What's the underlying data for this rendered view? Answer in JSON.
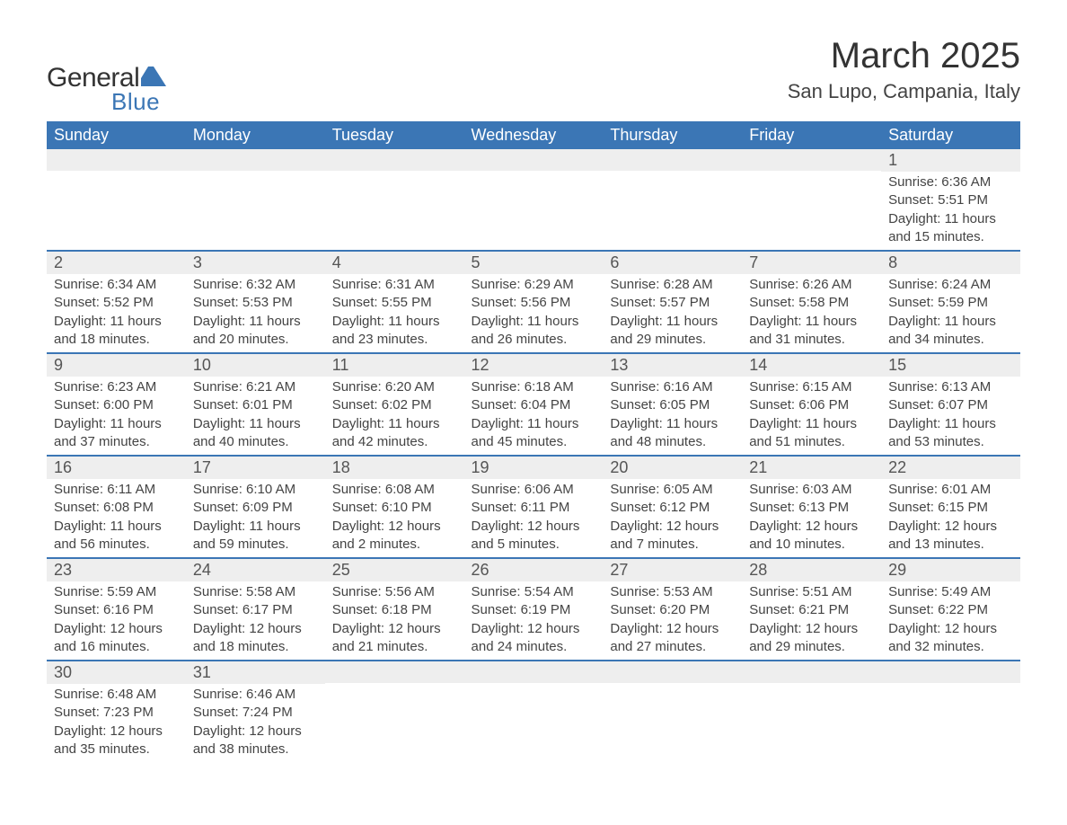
{
  "logo": {
    "text_general": "General",
    "text_blue": "Blue",
    "shape_color": "#3b76b5"
  },
  "header": {
    "month_title": "March 2025",
    "location": "San Lupo, Campania, Italy"
  },
  "colors": {
    "header_bg": "#3b76b5",
    "header_text": "#ffffff",
    "daynum_bg": "#eeeeee",
    "row_border": "#3b76b5",
    "body_text": "#444444",
    "page_bg": "#ffffff"
  },
  "weekdays": [
    "Sunday",
    "Monday",
    "Tuesday",
    "Wednesday",
    "Thursday",
    "Friday",
    "Saturday"
  ],
  "weeks": [
    [
      null,
      null,
      null,
      null,
      null,
      null,
      {
        "day": "1",
        "sunrise": "Sunrise: 6:36 AM",
        "sunset": "Sunset: 5:51 PM",
        "daylight1": "Daylight: 11 hours",
        "daylight2": "and 15 minutes."
      }
    ],
    [
      {
        "day": "2",
        "sunrise": "Sunrise: 6:34 AM",
        "sunset": "Sunset: 5:52 PM",
        "daylight1": "Daylight: 11 hours",
        "daylight2": "and 18 minutes."
      },
      {
        "day": "3",
        "sunrise": "Sunrise: 6:32 AM",
        "sunset": "Sunset: 5:53 PM",
        "daylight1": "Daylight: 11 hours",
        "daylight2": "and 20 minutes."
      },
      {
        "day": "4",
        "sunrise": "Sunrise: 6:31 AM",
        "sunset": "Sunset: 5:55 PM",
        "daylight1": "Daylight: 11 hours",
        "daylight2": "and 23 minutes."
      },
      {
        "day": "5",
        "sunrise": "Sunrise: 6:29 AM",
        "sunset": "Sunset: 5:56 PM",
        "daylight1": "Daylight: 11 hours",
        "daylight2": "and 26 minutes."
      },
      {
        "day": "6",
        "sunrise": "Sunrise: 6:28 AM",
        "sunset": "Sunset: 5:57 PM",
        "daylight1": "Daylight: 11 hours",
        "daylight2": "and 29 minutes."
      },
      {
        "day": "7",
        "sunrise": "Sunrise: 6:26 AM",
        "sunset": "Sunset: 5:58 PM",
        "daylight1": "Daylight: 11 hours",
        "daylight2": "and 31 minutes."
      },
      {
        "day": "8",
        "sunrise": "Sunrise: 6:24 AM",
        "sunset": "Sunset: 5:59 PM",
        "daylight1": "Daylight: 11 hours",
        "daylight2": "and 34 minutes."
      }
    ],
    [
      {
        "day": "9",
        "sunrise": "Sunrise: 6:23 AM",
        "sunset": "Sunset: 6:00 PM",
        "daylight1": "Daylight: 11 hours",
        "daylight2": "and 37 minutes."
      },
      {
        "day": "10",
        "sunrise": "Sunrise: 6:21 AM",
        "sunset": "Sunset: 6:01 PM",
        "daylight1": "Daylight: 11 hours",
        "daylight2": "and 40 minutes."
      },
      {
        "day": "11",
        "sunrise": "Sunrise: 6:20 AM",
        "sunset": "Sunset: 6:02 PM",
        "daylight1": "Daylight: 11 hours",
        "daylight2": "and 42 minutes."
      },
      {
        "day": "12",
        "sunrise": "Sunrise: 6:18 AM",
        "sunset": "Sunset: 6:04 PM",
        "daylight1": "Daylight: 11 hours",
        "daylight2": "and 45 minutes."
      },
      {
        "day": "13",
        "sunrise": "Sunrise: 6:16 AM",
        "sunset": "Sunset: 6:05 PM",
        "daylight1": "Daylight: 11 hours",
        "daylight2": "and 48 minutes."
      },
      {
        "day": "14",
        "sunrise": "Sunrise: 6:15 AM",
        "sunset": "Sunset: 6:06 PM",
        "daylight1": "Daylight: 11 hours",
        "daylight2": "and 51 minutes."
      },
      {
        "day": "15",
        "sunrise": "Sunrise: 6:13 AM",
        "sunset": "Sunset: 6:07 PM",
        "daylight1": "Daylight: 11 hours",
        "daylight2": "and 53 minutes."
      }
    ],
    [
      {
        "day": "16",
        "sunrise": "Sunrise: 6:11 AM",
        "sunset": "Sunset: 6:08 PM",
        "daylight1": "Daylight: 11 hours",
        "daylight2": "and 56 minutes."
      },
      {
        "day": "17",
        "sunrise": "Sunrise: 6:10 AM",
        "sunset": "Sunset: 6:09 PM",
        "daylight1": "Daylight: 11 hours",
        "daylight2": "and 59 minutes."
      },
      {
        "day": "18",
        "sunrise": "Sunrise: 6:08 AM",
        "sunset": "Sunset: 6:10 PM",
        "daylight1": "Daylight: 12 hours",
        "daylight2": "and 2 minutes."
      },
      {
        "day": "19",
        "sunrise": "Sunrise: 6:06 AM",
        "sunset": "Sunset: 6:11 PM",
        "daylight1": "Daylight: 12 hours",
        "daylight2": "and 5 minutes."
      },
      {
        "day": "20",
        "sunrise": "Sunrise: 6:05 AM",
        "sunset": "Sunset: 6:12 PM",
        "daylight1": "Daylight: 12 hours",
        "daylight2": "and 7 minutes."
      },
      {
        "day": "21",
        "sunrise": "Sunrise: 6:03 AM",
        "sunset": "Sunset: 6:13 PM",
        "daylight1": "Daylight: 12 hours",
        "daylight2": "and 10 minutes."
      },
      {
        "day": "22",
        "sunrise": "Sunrise: 6:01 AM",
        "sunset": "Sunset: 6:15 PM",
        "daylight1": "Daylight: 12 hours",
        "daylight2": "and 13 minutes."
      }
    ],
    [
      {
        "day": "23",
        "sunrise": "Sunrise: 5:59 AM",
        "sunset": "Sunset: 6:16 PM",
        "daylight1": "Daylight: 12 hours",
        "daylight2": "and 16 minutes."
      },
      {
        "day": "24",
        "sunrise": "Sunrise: 5:58 AM",
        "sunset": "Sunset: 6:17 PM",
        "daylight1": "Daylight: 12 hours",
        "daylight2": "and 18 minutes."
      },
      {
        "day": "25",
        "sunrise": "Sunrise: 5:56 AM",
        "sunset": "Sunset: 6:18 PM",
        "daylight1": "Daylight: 12 hours",
        "daylight2": "and 21 minutes."
      },
      {
        "day": "26",
        "sunrise": "Sunrise: 5:54 AM",
        "sunset": "Sunset: 6:19 PM",
        "daylight1": "Daylight: 12 hours",
        "daylight2": "and 24 minutes."
      },
      {
        "day": "27",
        "sunrise": "Sunrise: 5:53 AM",
        "sunset": "Sunset: 6:20 PM",
        "daylight1": "Daylight: 12 hours",
        "daylight2": "and 27 minutes."
      },
      {
        "day": "28",
        "sunrise": "Sunrise: 5:51 AM",
        "sunset": "Sunset: 6:21 PM",
        "daylight1": "Daylight: 12 hours",
        "daylight2": "and 29 minutes."
      },
      {
        "day": "29",
        "sunrise": "Sunrise: 5:49 AM",
        "sunset": "Sunset: 6:22 PM",
        "daylight1": "Daylight: 12 hours",
        "daylight2": "and 32 minutes."
      }
    ],
    [
      {
        "day": "30",
        "sunrise": "Sunrise: 6:48 AM",
        "sunset": "Sunset: 7:23 PM",
        "daylight1": "Daylight: 12 hours",
        "daylight2": "and 35 minutes."
      },
      {
        "day": "31",
        "sunrise": "Sunrise: 6:46 AM",
        "sunset": "Sunset: 7:24 PM",
        "daylight1": "Daylight: 12 hours",
        "daylight2": "and 38 minutes."
      },
      null,
      null,
      null,
      null,
      null
    ]
  ]
}
